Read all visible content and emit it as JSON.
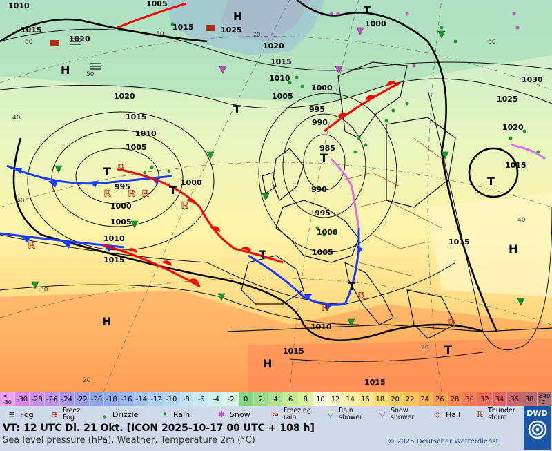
{
  "map": {
    "pressure_centers": [
      {
        "type": "H"
      },
      {
        "type": "H"
      },
      {
        "type": "H"
      },
      {
        "type": "H"
      },
      {
        "type": "H"
      },
      {
        "type": "T"
      },
      {
        "type": "T"
      },
      {
        "type": "T"
      },
      {
        "type": "T"
      },
      {
        "type": "T"
      },
      {
        "type": "T"
      },
      {
        "type": "T"
      },
      {
        "type": "T"
      },
      {
        "type": "T"
      }
    ],
    "isobar_labels": [
      "1010",
      "1005",
      "1015",
      "1020",
      "1015",
      "1025",
      "1020",
      "1015",
      "1000",
      "1005",
      "1010",
      "1000",
      "1030",
      "1025",
      "1020",
      "1020",
      "1015",
      "1010",
      "1005",
      "995",
      "995",
      "1000",
      "1005",
      "1000",
      "990",
      "985",
      "990",
      "995",
      "1000",
      "1005",
      "1010",
      "1015",
      "1015",
      "1015",
      "1015",
      "1010",
      "1015"
    ],
    "temp_labels": [
      "60",
      "50",
      "70",
      "40",
      "50",
      "60",
      "40",
      "40",
      "30",
      "20",
      "20"
    ]
  },
  "temp_scale": {
    "cells": [
      {
        "label": "<\n-30",
        "color": "#e9a3f2"
      },
      {
        "label": "-30",
        "color": "#d98ae8"
      },
      {
        "label": "-28",
        "color": "#cc8fe8"
      },
      {
        "label": "-26",
        "color": "#bb94ea"
      },
      {
        "label": "-24",
        "color": "#ab98ea"
      },
      {
        "label": "-22",
        "color": "#9c9de8"
      },
      {
        "label": "-20",
        "color": "#8da4e8"
      },
      {
        "label": "-18",
        "color": "#8facef"
      },
      {
        "label": "-16",
        "color": "#97b8f2"
      },
      {
        "label": "-14",
        "color": "#a0c4f4"
      },
      {
        "label": "-12",
        "color": "#a9cff5"
      },
      {
        "label": "-10",
        "color": "#b2daf6"
      },
      {
        "label": "-8",
        "color": "#bce3f5"
      },
      {
        "label": "-6",
        "color": "#c6ebf3"
      },
      {
        "label": "-4",
        "color": "#cff2ef"
      },
      {
        "label": "-2",
        "color": "#d6f5e5"
      },
      {
        "label": "0",
        "color": "#86d386"
      },
      {
        "label": "2",
        "color": "#98da88"
      },
      {
        "label": "4",
        "color": "#aee28e"
      },
      {
        "label": "6",
        "color": "#c4ea94"
      },
      {
        "label": "8",
        "color": "#daf29e"
      },
      {
        "label": "10",
        "color": "#fffde6"
      },
      {
        "label": "12",
        "color": "#fff7c8"
      },
      {
        "label": "14",
        "color": "#fff0a6"
      },
      {
        "label": "16",
        "color": "#ffe78a"
      },
      {
        "label": "18",
        "color": "#ffdd72"
      },
      {
        "label": "20",
        "color": "#ffd05e"
      },
      {
        "label": "22",
        "color": "#ffc255"
      },
      {
        "label": "24",
        "color": "#ffb04f"
      },
      {
        "label": "26",
        "color": "#ff9d4d"
      },
      {
        "label": "28",
        "color": "#ff8a4d"
      },
      {
        "label": "30",
        "color": "#ff7a55"
      },
      {
        "label": "32",
        "color": "#f26c5a"
      },
      {
        "label": "34",
        "color": "#e06462"
      },
      {
        "label": "36",
        "color": "#cd646a"
      },
      {
        "label": "38",
        "color": "#b9696f"
      },
      {
        "label": "≥40\n°C",
        "color": "#a87073"
      }
    ]
  },
  "legend": {
    "fog": "Fog",
    "freezing_fog": "Freez.\nFog",
    "drizzle": "Drizzle",
    "rain": "Rain",
    "snow": "Snow",
    "freezing_rain": "Freezing\nrain",
    "rain_shower": "Rain\nshower",
    "snow_shower": "Snow\nshower",
    "hail": "Hail",
    "thunderstorm": "Thunder\nstorm"
  },
  "info": {
    "valid_time": "VT: 12 UTC Di.  21 Okt. [ICON 2025-10-17  00 UTC + 108 h]",
    "subtitle": "Sea level pressure (hPa), Weather, Temperature 2m (°C)",
    "copyright": "© 2025 Deutscher Wetterdienst",
    "logo_text": "DWD"
  },
  "colors": {
    "warm_front": "#ff0000",
    "cold_front": "#1a3cff",
    "occluded_front": "#e070e0",
    "footer_bg": "#cfd9ea"
  }
}
